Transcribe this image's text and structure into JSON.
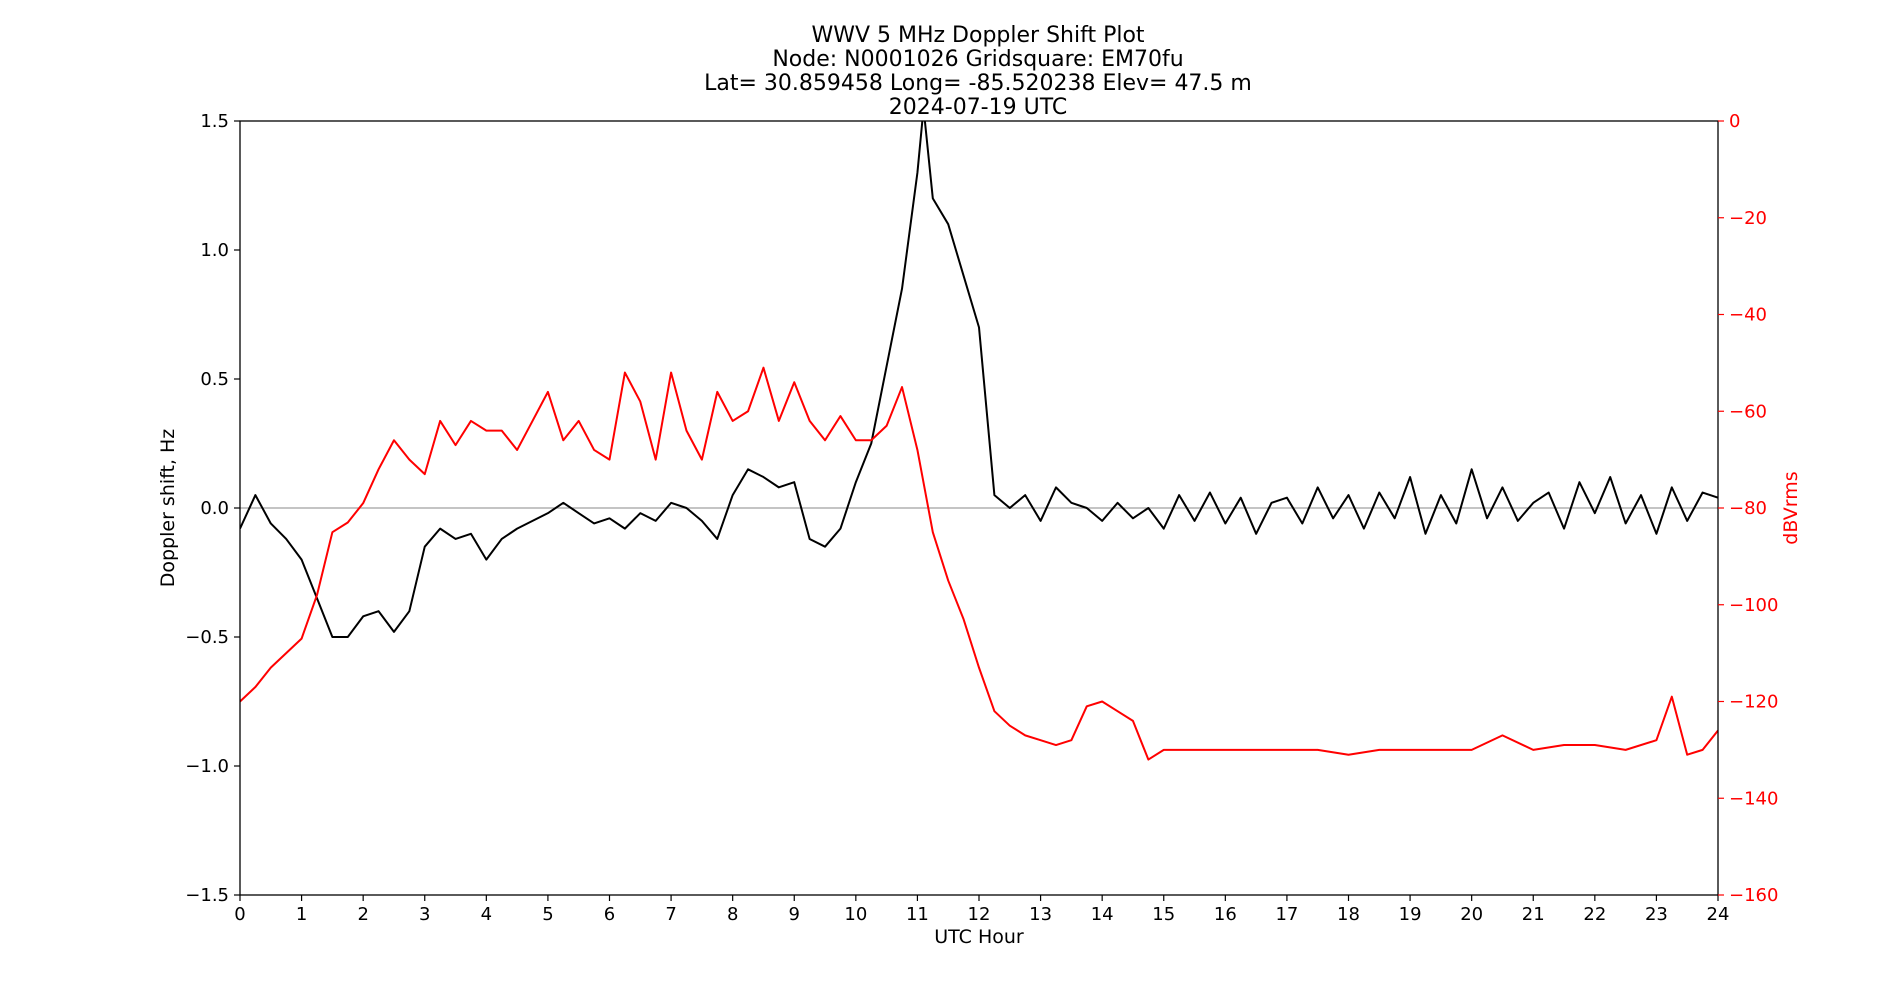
{
  "chart_data": {
    "type": "line",
    "title_lines": [
      "WWV 5 MHz Doppler Shift Plot",
      "Node:  N0001026     Gridsquare:  EM70fu",
      "Lat= 30.859458    Long= -85.520238    Elev= 47.5 m",
      "2024-07-19  UTC"
    ],
    "xlabel": "UTC Hour",
    "ylabel_left": "Doppler shift, Hz",
    "ylabel_right": "dBVrms",
    "xlim": [
      0,
      24
    ],
    "ylim_left": [
      -1.5,
      1.5
    ],
    "ylim_right": [
      -160,
      0
    ],
    "x_ticks": [
      "0",
      "1",
      "2",
      "3",
      "4",
      "5",
      "6",
      "7",
      "8",
      "9",
      "10",
      "11",
      "12",
      "13",
      "14",
      "15",
      "16",
      "17",
      "18",
      "19",
      "20",
      "21",
      "22",
      "23",
      "24"
    ],
    "y_ticks_left": [
      "1.5",
      "1.0",
      "0.5",
      "0.0",
      "−0.5",
      "−1.0",
      "−1.5"
    ],
    "y_ticks_right": [
      "0",
      "−20",
      "−40",
      "−60",
      "−80",
      "−100",
      "−120",
      "−140",
      "−160"
    ],
    "reference_line": {
      "y": 0.0,
      "color": "#a0a0a0"
    },
    "series": [
      {
        "axis": "left",
        "color": "#000000",
        "x": [
          0,
          0.25,
          0.5,
          0.75,
          1,
          1.25,
          1.5,
          1.75,
          2,
          2.25,
          2.5,
          2.75,
          3,
          3.25,
          3.5,
          3.75,
          4,
          4.25,
          4.5,
          4.75,
          5,
          5.25,
          5.5,
          5.75,
          6,
          6.25,
          6.5,
          6.75,
          7,
          7.25,
          7.5,
          7.75,
          8,
          8.25,
          8.5,
          8.75,
          9,
          9.25,
          9.5,
          9.75,
          10,
          10.25,
          10.5,
          10.75,
          11,
          11.1,
          11.25,
          11.5,
          11.75,
          12,
          12.25,
          12.5,
          12.75,
          13,
          13.25,
          13.5,
          13.75,
          14,
          14.25,
          14.5,
          14.75,
          15,
          15.25,
          15.5,
          15.75,
          16,
          16.25,
          16.5,
          16.75,
          17,
          17.25,
          17.5,
          17.75,
          18,
          18.25,
          18.5,
          18.75,
          19,
          19.25,
          19.5,
          19.75,
          20,
          20.25,
          20.5,
          20.75,
          21,
          21.25,
          21.5,
          21.75,
          22,
          22.25,
          22.5,
          22.75,
          23,
          23.25,
          23.5,
          23.75,
          24
        ],
        "y": [
          -0.08,
          0.05,
          -0.06,
          -0.12,
          -0.2,
          -0.35,
          -0.5,
          -0.5,
          -0.42,
          -0.4,
          -0.48,
          -0.4,
          -0.15,
          -0.08,
          -0.12,
          -0.1,
          -0.2,
          -0.12,
          -0.08,
          -0.05,
          -0.02,
          0.02,
          -0.02,
          -0.06,
          -0.04,
          -0.08,
          -0.02,
          -0.05,
          0.02,
          0.0,
          -0.05,
          -0.12,
          0.05,
          0.15,
          0.12,
          0.08,
          0.1,
          -0.12,
          -0.15,
          -0.08,
          0.1,
          0.25,
          0.55,
          0.85,
          1.3,
          1.55,
          1.2,
          1.1,
          0.9,
          0.7,
          0.05,
          0.0,
          0.05,
          -0.05,
          0.08,
          0.02,
          0.0,
          -0.05,
          0.02,
          -0.04,
          0.0,
          -0.08,
          0.05,
          -0.05,
          0.06,
          -0.06,
          0.04,
          -0.1,
          0.02,
          0.04,
          -0.06,
          0.08,
          -0.04,
          0.05,
          -0.08,
          0.06,
          -0.04,
          0.12,
          -0.1,
          0.05,
          -0.06,
          0.15,
          -0.04,
          0.08,
          -0.05,
          0.02,
          0.06,
          -0.08,
          0.1,
          -0.02,
          0.12,
          -0.06,
          0.05,
          -0.1,
          0.08,
          -0.05,
          0.06,
          0.04
        ]
      },
      {
        "axis": "right",
        "color": "#ff0000",
        "x": [
          0,
          0.25,
          0.5,
          0.75,
          1,
          1.25,
          1.5,
          1.75,
          2,
          2.25,
          2.5,
          2.75,
          3,
          3.25,
          3.5,
          3.75,
          4,
          4.25,
          4.5,
          4.75,
          5,
          5.25,
          5.5,
          5.75,
          6,
          6.25,
          6.5,
          6.75,
          7,
          7.25,
          7.5,
          7.75,
          8,
          8.25,
          8.5,
          8.75,
          9,
          9.25,
          9.5,
          9.75,
          10,
          10.25,
          10.5,
          10.75,
          11,
          11.25,
          11.5,
          11.75,
          12,
          12.25,
          12.5,
          12.75,
          13,
          13.25,
          13.5,
          13.75,
          14,
          14.25,
          14.5,
          14.75,
          15,
          15.5,
          16,
          16.5,
          17,
          17.5,
          18,
          18.5,
          19,
          19.5,
          20,
          20.5,
          21,
          21.5,
          22,
          22.5,
          23,
          23.25,
          23.5,
          23.75,
          24
        ],
        "y": [
          -120,
          -117,
          -113,
          -110,
          -107,
          -98,
          -85,
          -83,
          -79,
          -72,
          -66,
          -70,
          -73,
          -62,
          -67,
          -62,
          -64,
          -64,
          -68,
          -62,
          -56,
          -66,
          -62,
          -68,
          -70,
          -52,
          -58,
          -70,
          -52,
          -64,
          -70,
          -56,
          -62,
          -60,
          -51,
          -62,
          -54,
          -62,
          -66,
          -61,
          -66,
          -66,
          -63,
          -55,
          -68,
          -85,
          -95,
          -103,
          -113,
          -122,
          -125,
          -127,
          -128,
          -129,
          -128,
          -121,
          -120,
          -122,
          -124,
          -132,
          -130,
          -130,
          -130,
          -130,
          -130,
          -130,
          -131,
          -130,
          -130,
          -130,
          -130,
          -127,
          -130,
          -129,
          -129,
          -130,
          -128,
          -119,
          -131,
          -130,
          -126
        ]
      }
    ]
  }
}
